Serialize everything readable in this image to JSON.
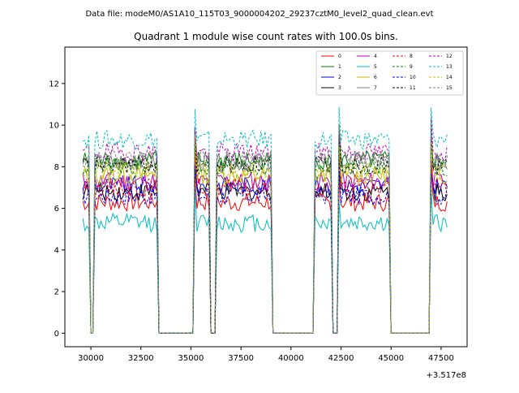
{
  "chart_data": {
    "type": "line",
    "suptitle": "Data file: modeM0/AS1A10_115T03_9000004202_29237cztM0_level2_quad_clean.evt",
    "title": "Quadrant 1 module wise count rates with 100.0s bins.",
    "xlabel": "",
    "ylabel": "",
    "offset_text": "+3.517e8",
    "xlim": [
      28700,
      48800
    ],
    "ylim": [
      -0.65,
      13.75
    ],
    "x_ticks": [
      30000,
      32500,
      35000,
      37500,
      40000,
      42500,
      45000,
      47500
    ],
    "x_tick_labels": [
      "30000",
      "32500",
      "35000",
      "37500",
      "40000",
      "42500",
      "45000",
      "47500"
    ],
    "y_ticks": [
      0,
      2,
      4,
      6,
      8,
      10,
      12
    ],
    "y_tick_labels": [
      "0",
      "2",
      "4",
      "6",
      "8",
      "10",
      "12"
    ],
    "grid": false,
    "legend_position": "top-right",
    "legend_columns": 4,
    "segments": [
      {
        "start": 29600,
        "end": 29950
      },
      {
        "start": 30150,
        "end": 33300
      },
      {
        "start": 35200,
        "end": 35950
      },
      {
        "start": 36300,
        "end": 39050
      },
      {
        "start": 41150,
        "end": 42050
      },
      {
        "start": 42400,
        "end": 44900
      },
      {
        "start": 47000,
        "end": 47850
      }
    ],
    "gaps_value": 0,
    "spikes": [
      {
        "x": 30050,
        "value": 0
      },
      {
        "x": 36150,
        "value": 0
      },
      {
        "x": 42250,
        "value": 0
      }
    ],
    "series": [
      {
        "name": "0",
        "color": "#ff0000",
        "dash": "solid",
        "level": 6.3
      },
      {
        "name": "1",
        "color": "#008000",
        "dash": "solid",
        "level": 8.3
      },
      {
        "name": "2",
        "color": "#0000ff",
        "dash": "solid",
        "level": 7.1
      },
      {
        "name": "3",
        "color": "#000000",
        "dash": "solid",
        "level": 6.8
      },
      {
        "name": "4",
        "color": "#bf00bf",
        "dash": "solid",
        "level": 7.3
      },
      {
        "name": "5",
        "color": "#00bfbf",
        "dash": "solid",
        "level": 5.3
      },
      {
        "name": "6",
        "color": "#bfbf00",
        "dash": "solid",
        "level": 7.6
      },
      {
        "name": "7",
        "color": "#808080",
        "dash": "solid",
        "level": 8.2
      },
      {
        "name": "8",
        "color": "#ff0000",
        "dash": "dashed",
        "level": 7.0
      },
      {
        "name": "9",
        "color": "#008000",
        "dash": "dashed",
        "level": 8.0
      },
      {
        "name": "10",
        "color": "#0000ff",
        "dash": "dashed",
        "level": 6.6
      },
      {
        "name": "11",
        "color": "#000000",
        "dash": "dashed",
        "level": 8.1
      },
      {
        "name": "12",
        "color": "#bf00bf",
        "dash": "dashed",
        "level": 8.7
      },
      {
        "name": "13",
        "color": "#00bfbf",
        "dash": "dashed",
        "level": 9.3
      },
      {
        "name": "14",
        "color": "#bfbf00",
        "dash": "dashed",
        "level": 7.8
      },
      {
        "name": "15",
        "color": "#808080",
        "dash": "dashed",
        "level": 8.4
      }
    ]
  }
}
